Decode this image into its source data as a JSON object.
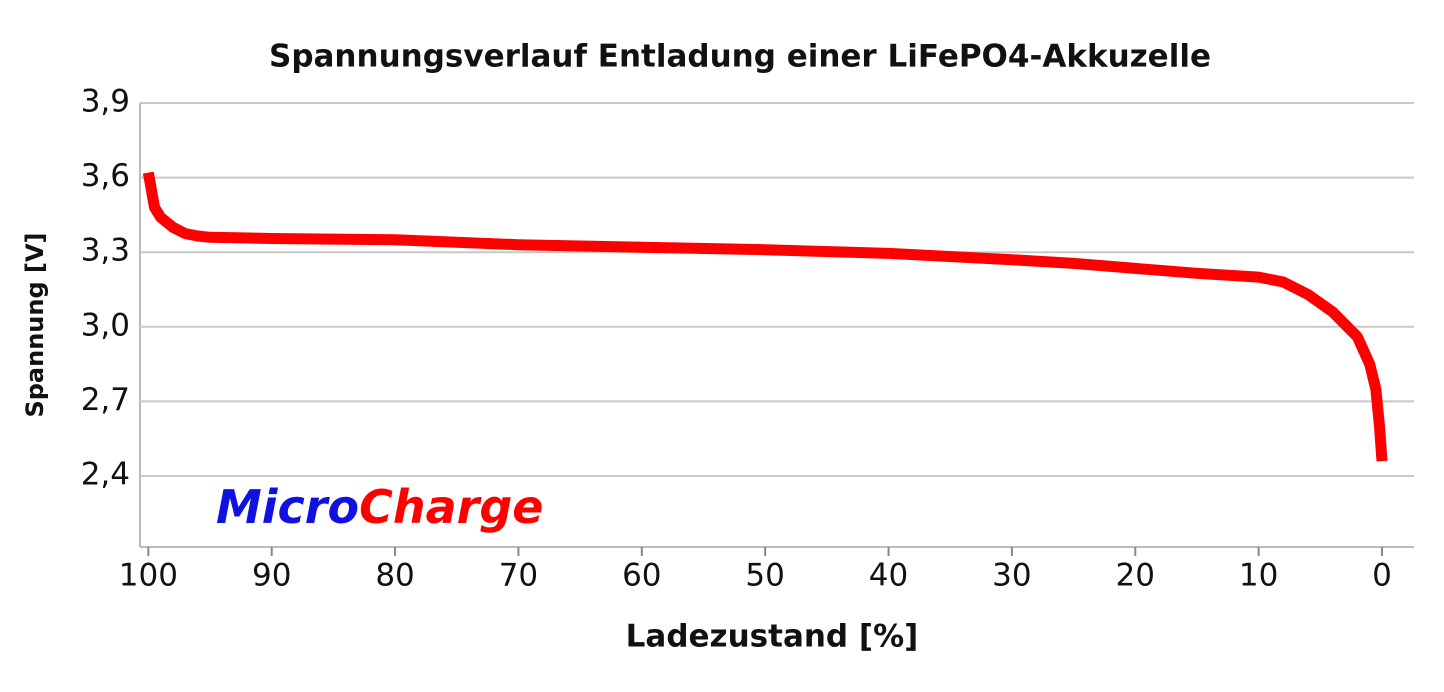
{
  "chart_data": {
    "type": "line",
    "title": "Spannungsverlauf Entladung einer LiFePO4-Akkuzelle",
    "x_label": "Ladezustand [%]",
    "y_label": "Spannung [V]",
    "annotations": [
      "Micro",
      "Charge"
    ],
    "annotation_colors": [
      "#1010e0",
      "#ff0000"
    ],
    "x": [
      100,
      99.5,
      99,
      98,
      97,
      96,
      95,
      90,
      80,
      70,
      60,
      50,
      40,
      30,
      25,
      20,
      15,
      10,
      8,
      6,
      4,
      2,
      1,
      0.5,
      0.2,
      0
    ],
    "values": [
      3.62,
      3.48,
      3.44,
      3.4,
      3.375,
      3.365,
      3.36,
      3.355,
      3.35,
      3.33,
      3.32,
      3.31,
      3.295,
      3.27,
      3.255,
      3.235,
      3.215,
      3.2,
      3.18,
      3.13,
      3.06,
      2.96,
      2.85,
      2.75,
      2.6,
      2.46
    ],
    "color": "#ff0000",
    "xlim": [
      101,
      -3
    ],
    "ylim": [
      2.1,
      3.9
    ],
    "xticks": [
      100,
      90,
      80,
      70,
      60,
      50,
      40,
      30,
      20,
      10,
      0
    ],
    "yticks": [
      {
        "value": 2.4,
        "label": "2,4"
      },
      {
        "value": 2.7,
        "label": "2,7"
      },
      {
        "value": 3.0,
        "label": "3,0"
      },
      {
        "value": 3.3,
        "label": "3,3"
      },
      {
        "value": 3.6,
        "label": "3,6"
      },
      {
        "value": 3.9,
        "label": "3,9"
      }
    ],
    "grid": true
  }
}
